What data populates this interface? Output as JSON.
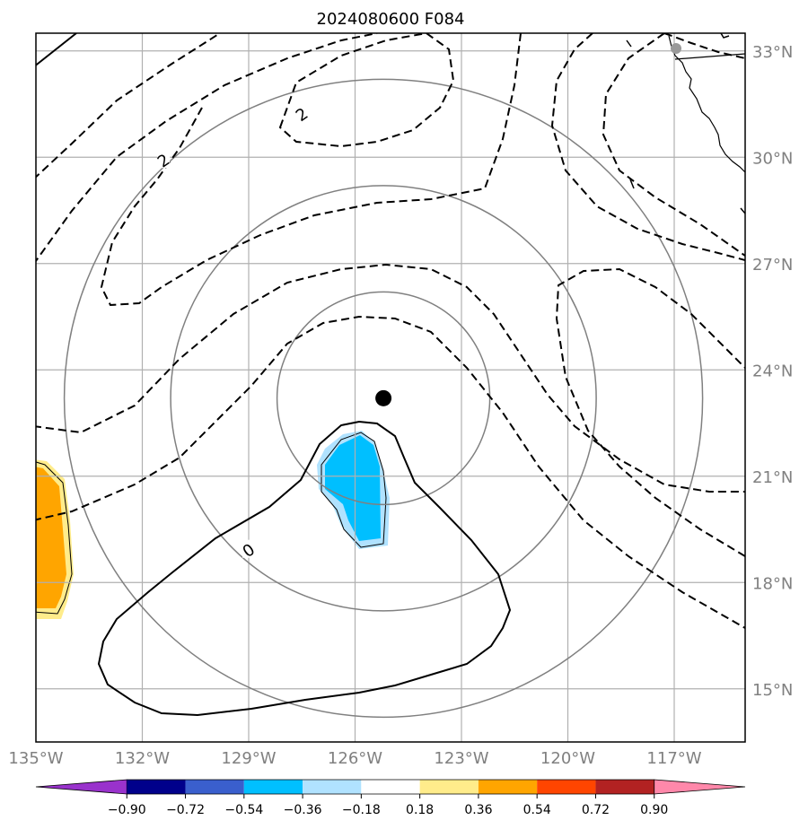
{
  "title": "2024080600 F084",
  "map": {
    "lon_range": [
      -135.0,
      -115.0
    ],
    "lat_range": [
      13.5,
      33.5
    ],
    "lon_ticks": [
      {
        "value": -135,
        "label": "135°W"
      },
      {
        "value": -132,
        "label": "132°W"
      },
      {
        "value": -129,
        "label": "129°W"
      },
      {
        "value": -126,
        "label": "126°W"
      },
      {
        "value": -123,
        "label": "123°W"
      },
      {
        "value": -120,
        "label": "120°W"
      },
      {
        "value": -117,
        "label": "117°W"
      }
    ],
    "lat_ticks": [
      {
        "value": 15,
        "label": "15°N"
      },
      {
        "value": 18,
        "label": "18°N"
      },
      {
        "value": 21,
        "label": "21°N"
      },
      {
        "value": 24,
        "label": "24°N"
      },
      {
        "value": 27,
        "label": "27°N"
      },
      {
        "value": 30,
        "label": "30°N"
      },
      {
        "value": 33,
        "label": "33°N"
      }
    ],
    "storm_center": {
      "lon": -125.2,
      "lat": 23.2
    },
    "range_rings_deg": [
      3,
      6,
      9
    ],
    "grid_color": "#b0b0b0",
    "ring_color": "#808080",
    "contour_labels": [
      {
        "text": "2",
        "lon": -127.5,
        "lat": 31.2
      },
      {
        "text": "2",
        "lon": -131.4,
        "lat": 29.9
      },
      {
        "text": "0",
        "lon": -129.0,
        "lat": 18.9
      }
    ]
  },
  "colorbar": {
    "labels": [
      "−0.90",
      "−0.72",
      "−0.54",
      "−0.36",
      "−0.18",
      "0.18",
      "0.36",
      "0.54",
      "0.72",
      "0.90"
    ],
    "under_color": "#9932cc",
    "over_color": "#ff88aa",
    "bin_colors": [
      "#00008b",
      "#3a5fcd",
      "#00bfff",
      "#b0e2ff",
      "#ffffff",
      "#ffec8b",
      "#ffa500",
      "#ff4500",
      "#b22222"
    ]
  },
  "fields": {
    "negative_fill_colors": [
      "#b0e2ff",
      "#00bfff"
    ],
    "positive_fill_colors": [
      "#ffec8b",
      "#ffa500"
    ]
  },
  "markers": {
    "storm_color": "#000000",
    "city_color": "#999999"
  }
}
